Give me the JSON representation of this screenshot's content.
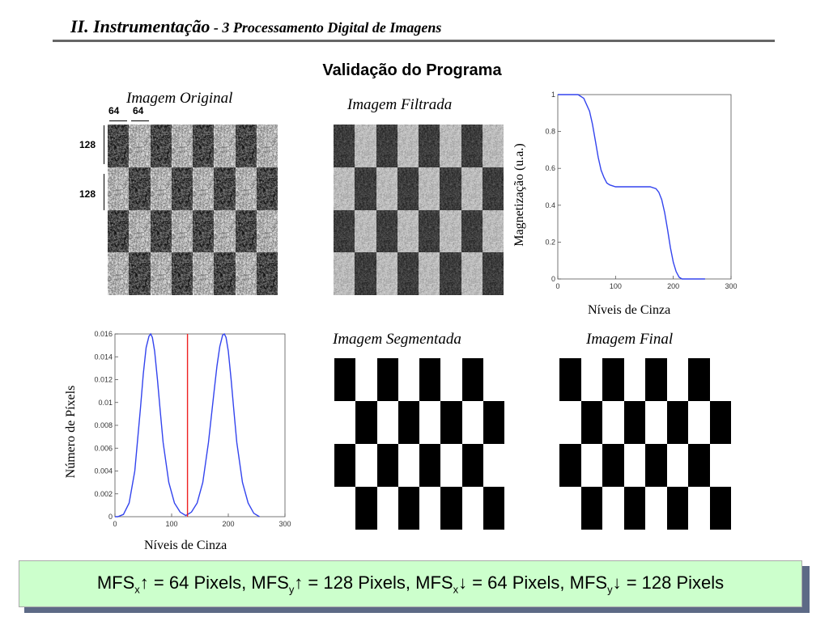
{
  "header": {
    "section": "II. Instrumentação",
    "separator": " - ",
    "topic": "3 Processamento Digital de Imagens"
  },
  "subtitle": "Validação do Programa",
  "captions": {
    "original": "Imagem  Original",
    "filtered": "Imagem  Filtrada",
    "segmented": "Imagem  Segmentada",
    "final": "Imagem  Final"
  },
  "dimensions": {
    "w1": "64",
    "w2": "64",
    "h1": "128",
    "h2": "128"
  },
  "banner": {
    "t1": "MFS",
    "s1": "x",
    "t2": "↑ = 64 Pixels, MFS",
    "s2": "y",
    "t3": "↑ = 128 Pixels, MFS",
    "s3": "x",
    "t4": "↓ = 64 Pixels, MFS",
    "s4": "y",
    "t5": "↓ = 128 Pixels"
  },
  "chart_data": [
    {
      "type": "line",
      "ylabel": "Magnetização (u.a.)",
      "xlabel": "Níveis de Cinza",
      "xlim": [
        0,
        300
      ],
      "ylim": [
        0,
        1
      ],
      "xticks": [
        "0",
        "100",
        "200",
        "300"
      ],
      "yticks": [
        "0",
        "0.2",
        "0.4",
        "0.6",
        "0.8",
        "1"
      ],
      "color": "#3344ee",
      "series": [
        {
          "x": [
            0,
            25,
            35,
            45,
            55,
            60,
            65,
            70,
            75,
            80,
            85,
            90,
            100,
            120,
            140,
            160,
            170,
            175,
            180,
            185,
            190,
            195,
            200,
            205,
            210,
            215,
            220,
            255
          ],
          "values": [
            1,
            1,
            1,
            0.98,
            0.91,
            0.84,
            0.75,
            0.66,
            0.59,
            0.55,
            0.52,
            0.51,
            0.5,
            0.5,
            0.5,
            0.5,
            0.49,
            0.47,
            0.43,
            0.36,
            0.27,
            0.17,
            0.09,
            0.04,
            0.01,
            0,
            0,
            0
          ]
        }
      ]
    },
    {
      "type": "line",
      "ylabel": "Número de Píxels",
      "xlabel": "Níveis de Cinza",
      "xlim": [
        0,
        300
      ],
      "ylim": [
        0,
        0.016
      ],
      "xticks": [
        "0",
        "100",
        "200",
        "300"
      ],
      "yticks": [
        "0",
        "0.002",
        "0.004",
        "0.006",
        "0.008",
        "0.01",
        "0.012",
        "0.014",
        "0.016"
      ],
      "color": "#3344ee",
      "threshold": {
        "x": 128,
        "color": "#ee2222"
      },
      "series": [
        {
          "x": [
            0,
            5,
            15,
            25,
            35,
            45,
            50,
            55,
            60,
            63,
            66,
            70,
            75,
            80,
            85,
            95,
            105,
            115,
            125,
            135,
            145,
            155,
            165,
            175,
            180,
            185,
            190,
            193,
            196,
            200,
            205,
            210,
            215,
            225,
            235,
            245,
            255
          ],
          "values": [
            0,
            0,
            0.0002,
            0.0012,
            0.004,
            0.0095,
            0.0125,
            0.0148,
            0.0158,
            0.016,
            0.0157,
            0.0145,
            0.012,
            0.0092,
            0.0065,
            0.003,
            0.0012,
            0.0004,
            0.0001,
            0.0004,
            0.0012,
            0.003,
            0.0065,
            0.011,
            0.0132,
            0.0149,
            0.0159,
            0.016,
            0.0157,
            0.0145,
            0.012,
            0.0092,
            0.0065,
            0.003,
            0.0012,
            0.0003,
            0
          ]
        }
      ]
    }
  ]
}
